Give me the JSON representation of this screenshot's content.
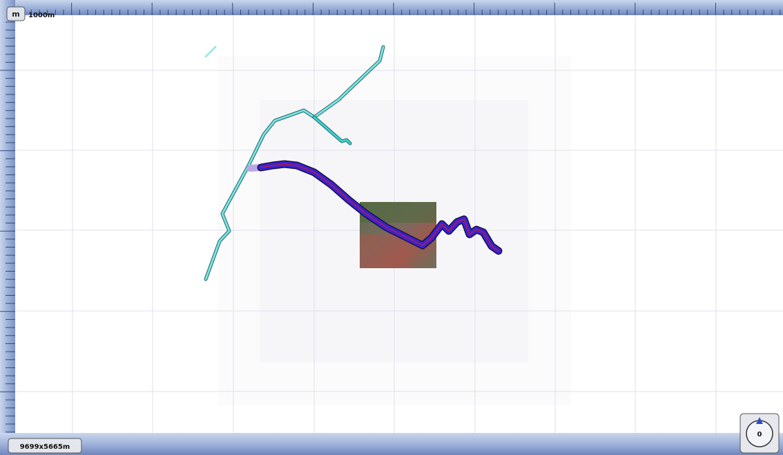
{
  "scale_button": "m",
  "scale_label": "1000m",
  "extent_label": "9699x5665m",
  "compass_label": "0"
}
